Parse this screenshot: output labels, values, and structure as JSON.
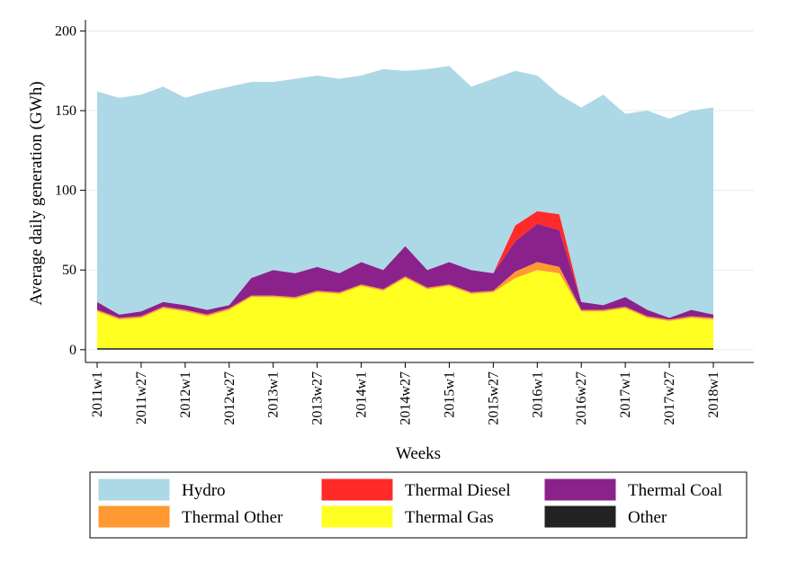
{
  "chart_data": {
    "type": "stacked-area",
    "x_label": "Weeks",
    "y_label": "Average daily generation (GWh)",
    "x": [
      "2011w1",
      "2011w14",
      "2011w27",
      "2011w40",
      "2012w1",
      "2012w14",
      "2012w27",
      "2012w40",
      "2013w1",
      "2013w14",
      "2013w27",
      "2013w40",
      "2014w1",
      "2014w14",
      "2014w27",
      "2014w40",
      "2015w1",
      "2015w14",
      "2015w27",
      "2015w40",
      "2016w1",
      "2016w14",
      "2016w27",
      "2016w40",
      "2017w1",
      "2017w14",
      "2017w27",
      "2017w40",
      "2018w1"
    ],
    "xticks": [
      "2011w1",
      "2011w27",
      "2012w1",
      "2012w27",
      "2013w1",
      "2013w27",
      "2014w1",
      "2014w27",
      "2015w1",
      "2015w27",
      "2016w1",
      "2016w27",
      "2017w1",
      "2017w27",
      "2018w1"
    ],
    "ylim": [
      -8,
      207
    ],
    "yticks": [
      0,
      50,
      100,
      150,
      200
    ],
    "grid": true,
    "series": [
      {
        "name": "Other",
        "color": "#222222",
        "values": [
          1,
          1,
          1,
          1,
          1,
          1,
          1,
          1,
          1,
          1,
          1,
          1,
          1,
          1,
          1,
          1,
          1,
          1,
          1,
          1,
          1,
          1,
          1,
          1,
          1,
          1,
          1,
          1,
          1
        ]
      },
      {
        "name": "Thermal Gas",
        "color": "#ffff22",
        "values": [
          23,
          18,
          19,
          25,
          23,
          20,
          24,
          32,
          32,
          31,
          35,
          34,
          39,
          36,
          44,
          37,
          39,
          34,
          35,
          44,
          49,
          47,
          23,
          23,
          25,
          19,
          17,
          19,
          18
        ]
      },
      {
        "name": "Thermal Other",
        "color": "#ff9933",
        "values": [
          1,
          1,
          1,
          1,
          1,
          1,
          1,
          1,
          1,
          1,
          1,
          1,
          1,
          1,
          1,
          1,
          1,
          1,
          1,
          4,
          5,
          4,
          1,
          1,
          1,
          1,
          1,
          1,
          1
        ]
      },
      {
        "name": "Thermal Coal",
        "color": "#8b228b",
        "values": [
          5,
          2,
          3,
          3,
          3,
          3,
          2,
          11,
          16,
          15,
          15,
          12,
          14,
          12,
          19,
          11,
          14,
          14,
          11,
          19,
          24,
          23,
          5,
          3,
          6,
          4,
          1,
          4,
          2
        ]
      },
      {
        "name": "Thermal Diesel",
        "color": "#ff2a2a",
        "values": [
          0,
          0,
          0,
          0,
          0,
          0,
          0,
          0,
          0,
          0,
          0,
          0,
          0,
          0,
          0,
          0,
          0,
          0,
          0,
          10,
          8,
          10,
          0,
          0,
          0,
          0,
          0,
          0,
          0
        ]
      },
      {
        "name": "Hydro",
        "color": "#add8e6",
        "values": [
          132,
          136,
          136,
          135,
          130,
          137,
          137,
          123,
          118,
          122,
          120,
          122,
          117,
          126,
          110,
          126,
          123,
          115,
          122,
          97,
          85,
          75,
          122,
          132,
          115,
          125,
          125,
          125,
          130
        ]
      }
    ],
    "legend_order": [
      5,
      4,
      3,
      2,
      1,
      0
    ]
  }
}
